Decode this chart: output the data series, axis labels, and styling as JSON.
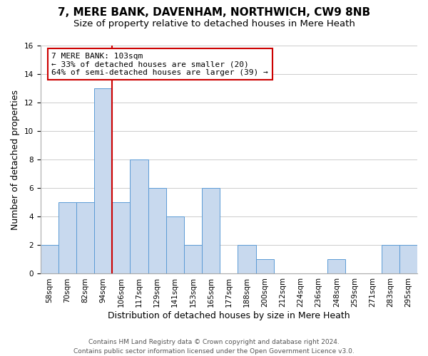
{
  "title": "7, MERE BANK, DAVENHAM, NORTHWICH, CW9 8NB",
  "subtitle": "Size of property relative to detached houses in Mere Heath",
  "xlabel": "Distribution of detached houses by size in Mere Heath",
  "ylabel": "Number of detached properties",
  "bin_labels": [
    "58sqm",
    "70sqm",
    "82sqm",
    "94sqm",
    "106sqm",
    "117sqm",
    "129sqm",
    "141sqm",
    "153sqm",
    "165sqm",
    "177sqm",
    "188sqm",
    "200sqm",
    "212sqm",
    "224sqm",
    "236sqm",
    "248sqm",
    "259sqm",
    "271sqm",
    "283sqm",
    "295sqm"
  ],
  "bar_heights": [
    2,
    5,
    5,
    13,
    5,
    8,
    6,
    4,
    2,
    6,
    0,
    2,
    1,
    0,
    0,
    0,
    1,
    0,
    0,
    2,
    2
  ],
  "bar_color": "#c8d9ee",
  "bar_edge_color": "#5b9bd5",
  "vline_x_index": 3.5,
  "vline_color": "#cc0000",
  "ylim": [
    0,
    16
  ],
  "yticks": [
    0,
    2,
    4,
    6,
    8,
    10,
    12,
    14,
    16
  ],
  "annotation_title": "7 MERE BANK: 103sqm",
  "annotation_line1": "← 33% of detached houses are smaller (20)",
  "annotation_line2": "64% of semi-detached houses are larger (39) →",
  "annotation_box_color": "#ffffff",
  "annotation_box_edge": "#cc0000",
  "footer_line1": "Contains HM Land Registry data © Crown copyright and database right 2024.",
  "footer_line2": "Contains public sector information licensed under the Open Government Licence v3.0.",
  "background_color": "#ffffff",
  "grid_color": "#cccccc",
  "title_fontsize": 11,
  "subtitle_fontsize": 9.5,
  "axis_label_fontsize": 9,
  "tick_fontsize": 7.5,
  "annotation_fontsize": 8,
  "footer_fontsize": 6.5
}
